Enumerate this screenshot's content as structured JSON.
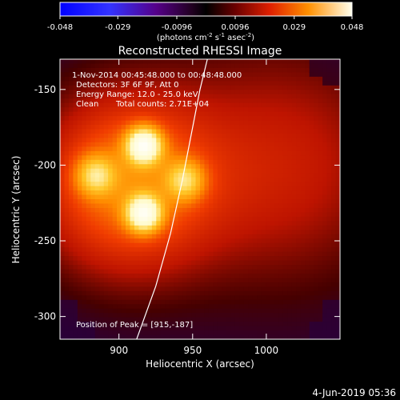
{
  "chart_data": {
    "type": "heatmap",
    "title": "Reconstructed RHESSI Image",
    "xlabel": "Heliocentric X (arcsec)",
    "ylabel": "Heliocentric Y (arcsec)",
    "xlim": [
      860,
      1050
    ],
    "ylim": [
      -315,
      -130
    ],
    "xticks": [
      900,
      950,
      1000
    ],
    "yticks": [
      -150,
      -200,
      -250,
      -300
    ],
    "colorbar": {
      "ticks": [
        "-0.048",
        "-0.029",
        "-0.0096",
        "0.0096",
        "0.029",
        "0.048"
      ],
      "values": [
        -0.048,
        -0.029,
        -0.0096,
        0.0096,
        0.029,
        0.048
      ],
      "range": [
        -0.048,
        0.048
      ],
      "label_parts": [
        "(photons cm",
        "-2",
        " s",
        "-1",
        " asec",
        "-2",
        ")"
      ]
    },
    "annotations": {
      "time_range": "1-Nov-2014 00:45:48.000 to 00:48:48.000",
      "detectors": "Detectors: 3F 6F 9F, Att 0",
      "energy": "Energy Range: 12.0 - 25.0 keV",
      "clean_label": "Clean",
      "total_counts": "Total counts: 2.71E+04",
      "peak": "Position of Peak = [915,-187]"
    },
    "sources": [
      {
        "x": 917,
        "y": -187,
        "sigma": 8,
        "amp": 0.032
      },
      {
        "x": 917,
        "y": -232,
        "sigma": 8,
        "amp": 0.03
      },
      {
        "x": 884,
        "y": -207,
        "sigma": 9,
        "amp": 0.016
      },
      {
        "x": 945,
        "y": -210,
        "sigma": 9,
        "amp": 0.016
      },
      {
        "x": 905,
        "y": -212,
        "sigma": 40,
        "amp": 0.016
      },
      {
        "x": 1010,
        "y": -200,
        "sigma": 55,
        "amp": 0.007
      }
    ],
    "limb": [
      [
        912,
        -315
      ],
      [
        925,
        -280
      ],
      [
        935,
        -245
      ],
      [
        943,
        -210
      ],
      [
        950,
        -175
      ],
      [
        955,
        -150
      ],
      [
        960,
        -130
      ]
    ],
    "footer_date": "4-Jun-2019 05:36"
  },
  "colors": {
    "background": "#000000",
    "text": "#ffffff",
    "limb": "#ffffff"
  }
}
